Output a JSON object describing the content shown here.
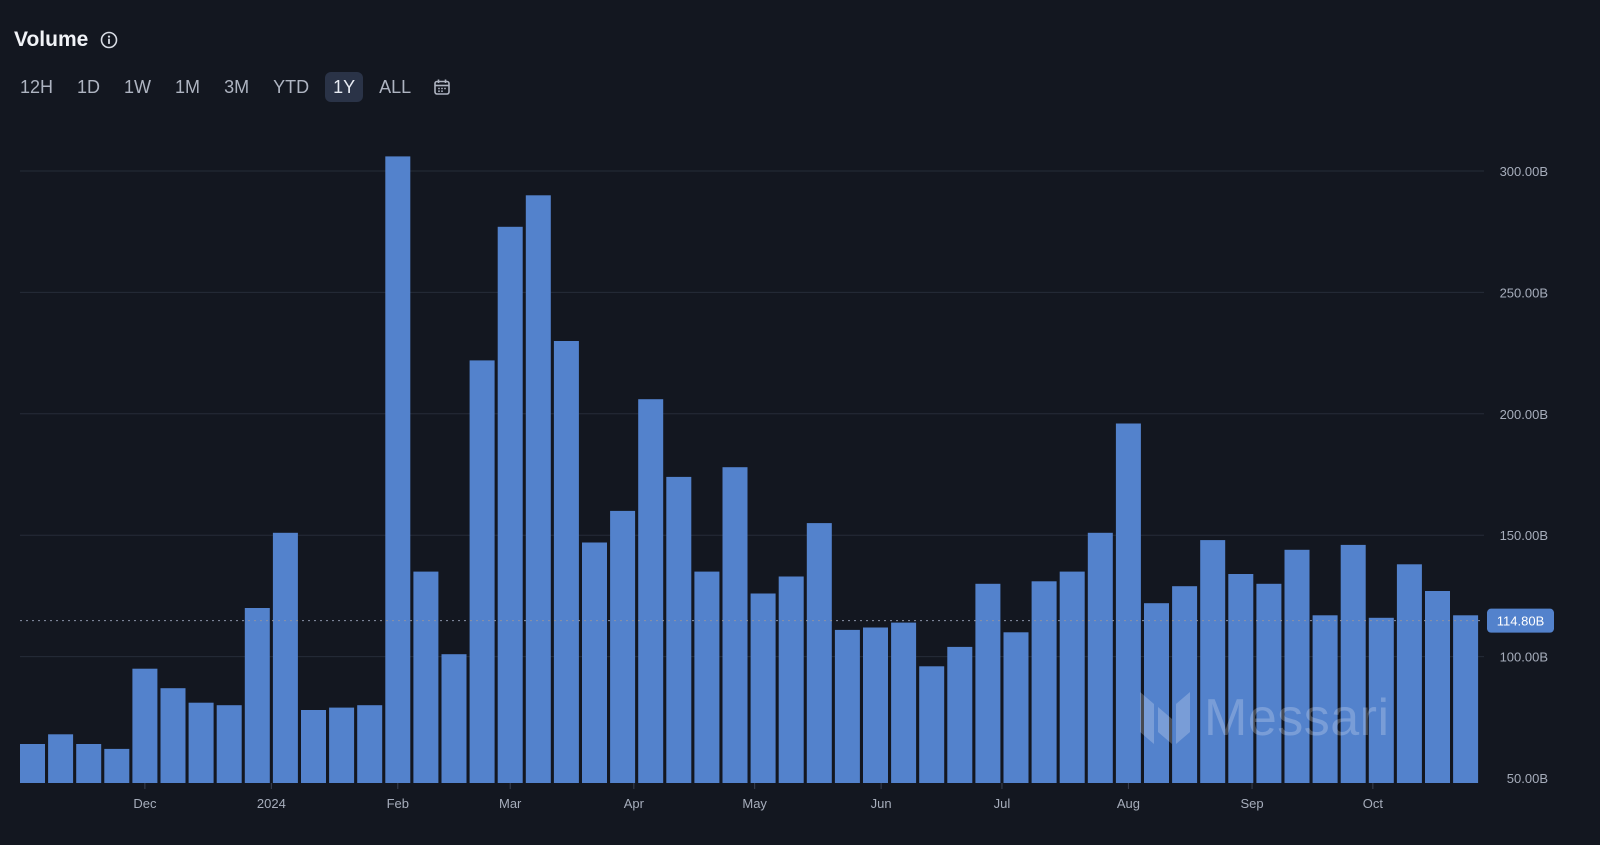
{
  "header": {
    "title": "Volume"
  },
  "timeframes": {
    "items": [
      "12H",
      "1D",
      "1W",
      "1M",
      "3M",
      "YTD",
      "1Y",
      "ALL"
    ],
    "active": "1Y"
  },
  "colors": {
    "background": "#131720",
    "bar": "#5382cc",
    "grid": "#262c38",
    "badge": "#5382cc"
  },
  "icons": {
    "info": "info-icon",
    "calendar": "calendar-icon",
    "logo": "messari-logo-icon"
  },
  "watermark": {
    "text": "Messari"
  },
  "chart_data": {
    "type": "bar",
    "title": "Volume",
    "xlabel": "",
    "ylabel": "",
    "ylim": [
      50,
      305
    ],
    "yticks": [
      {
        "value": 300,
        "label": "300.00B"
      },
      {
        "value": 250,
        "label": "250.00B"
      },
      {
        "value": 200,
        "label": "200.00B"
      },
      {
        "value": 150,
        "label": "150.00B"
      },
      {
        "value": 100,
        "label": "100.00B"
      },
      {
        "value": 50,
        "label": "50.00B"
      }
    ],
    "xticks": [
      {
        "index": 4,
        "label": "Dec"
      },
      {
        "index": 8.5,
        "label": "2024"
      },
      {
        "index": 13,
        "label": "Feb"
      },
      {
        "index": 17,
        "label": "Mar"
      },
      {
        "index": 21.4,
        "label": "Apr"
      },
      {
        "index": 25.7,
        "label": "May"
      },
      {
        "index": 30.2,
        "label": "Jun"
      },
      {
        "index": 34.5,
        "label": "Jul"
      },
      {
        "index": 39,
        "label": "Aug"
      },
      {
        "index": 43.4,
        "label": "Sep"
      },
      {
        "index": 47.7,
        "label": "Oct"
      }
    ],
    "values": [
      64,
      68,
      64,
      62,
      95,
      87,
      81,
      80,
      120,
      151,
      78,
      79,
      80,
      306,
      135,
      101,
      222,
      277,
      290,
      230,
      147,
      160,
      206,
      174,
      135,
      178,
      126,
      133,
      155,
      111,
      112,
      114,
      96,
      104,
      130,
      110,
      131,
      135,
      151,
      196,
      122,
      129,
      148,
      134,
      130,
      144,
      117,
      146,
      116,
      138,
      127,
      117
    ],
    "current": {
      "value": 114.8,
      "label": "114.80B"
    },
    "grid": true,
    "legend": "none"
  }
}
